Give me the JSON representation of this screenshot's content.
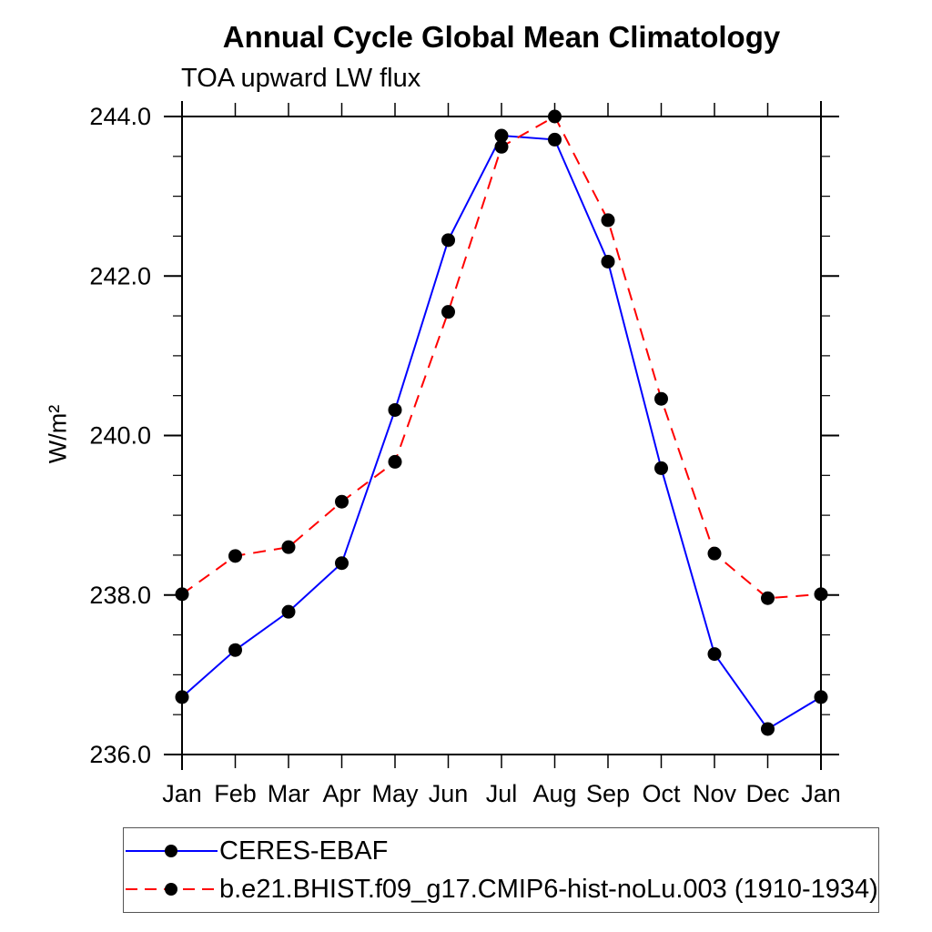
{
  "figure": {
    "background": "#ffffff",
    "text_color": "#000000"
  },
  "chart_data": {
    "type": "line",
    "title": "Annual Cycle Global Mean Climatology",
    "subtitle": "TOA upward LW flux",
    "ylabel": "W/m²",
    "xlabel": "",
    "categories": [
      "Jan",
      "Feb",
      "Mar",
      "Apr",
      "May",
      "Jun",
      "Jul",
      "Aug",
      "Sep",
      "Oct",
      "Nov",
      "Dec",
      "Jan"
    ],
    "ylim": [
      236.0,
      244.0
    ],
    "ytick_values": [
      236.0,
      238.0,
      240.0,
      242.0,
      244.0
    ],
    "ytick_labels": [
      "236.0",
      "238.0",
      "240.0",
      "242.0",
      "244.0"
    ],
    "ytick_minor_step": 0.5,
    "grid": false,
    "frame": "box-with-crossed-corners",
    "legend_position": "bottom-left",
    "marker": "filled-circle",
    "marker_color": "#000000",
    "series": [
      {
        "name": "CERES-EBAF",
        "color": "#0000ff",
        "line_style": "solid",
        "values": [
          236.72,
          237.31,
          237.79,
          238.4,
          240.32,
          242.45,
          243.76,
          243.71,
          242.18,
          239.59,
          237.26,
          236.32,
          236.72
        ]
      },
      {
        "name": "b.e21.BHIST.f09_g17.CMIP6-hist-noLu.003 (1910-1934)",
        "color": "#ff0000",
        "line_style": "dashed",
        "values": [
          238.01,
          238.49,
          238.6,
          239.17,
          239.67,
          241.55,
          243.62,
          244.0,
          242.7,
          240.46,
          238.52,
          237.96,
          238.01
        ]
      }
    ]
  }
}
